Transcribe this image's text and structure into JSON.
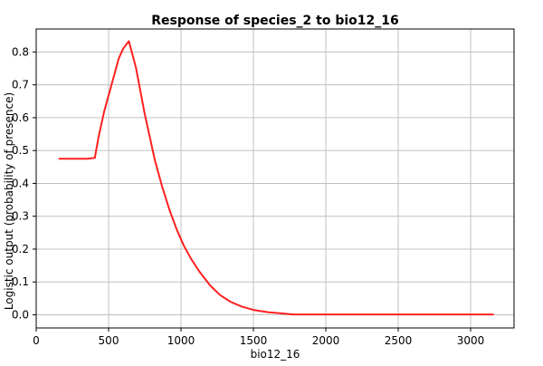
{
  "chart_data": {
    "type": "line",
    "title": "Response of species_2 to bio12_16",
    "xlabel": "bio12_16",
    "ylabel": "Logistic output (probability of presence)",
    "xlim": [
      0,
      3300
    ],
    "ylim": [
      -0.04,
      0.87
    ],
    "x_ticks": [
      0,
      500,
      1000,
      1500,
      2000,
      2500,
      3000
    ],
    "y_ticks": [
      0.0,
      0.1,
      0.2,
      0.3,
      0.4,
      0.5,
      0.6,
      0.7,
      0.8
    ],
    "grid": true,
    "legend": "none",
    "line_color": "#ff2020",
    "series": [
      {
        "x": [
          155,
          250,
          350,
          405,
          430,
          470,
          520,
          570,
          600,
          640,
          660,
          690,
          720,
          750,
          780,
          820,
          870,
          920,
          970,
          1020,
          1070,
          1130,
          1200,
          1270,
          1340,
          1420,
          1500,
          1600,
          1700,
          1750,
          1780,
          2000,
          2500,
          3000,
          3160
        ],
        "y": [
          0.475,
          0.475,
          0.475,
          0.478,
          0.54,
          0.62,
          0.7,
          0.78,
          0.81,
          0.833,
          0.8,
          0.75,
          0.68,
          0.61,
          0.55,
          0.47,
          0.39,
          0.32,
          0.26,
          0.21,
          0.17,
          0.13,
          0.09,
          0.06,
          0.04,
          0.025,
          0.015,
          0.008,
          0.004,
          0.002,
          0.001,
          0.001,
          0.001,
          0.001,
          0.001
        ]
      }
    ]
  }
}
